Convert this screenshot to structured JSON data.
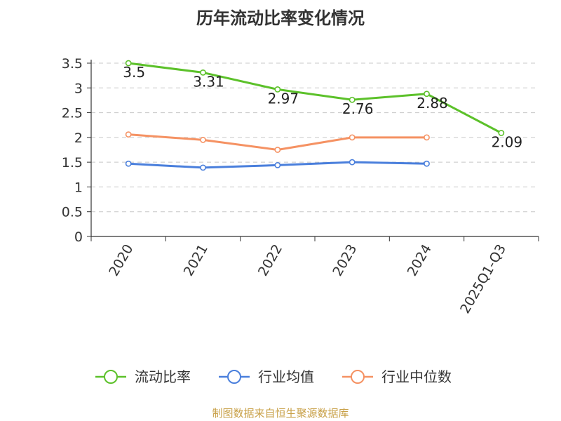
{
  "chart_data": {
    "type": "line",
    "title": "历年流动比率变化情况",
    "categories": [
      "2020",
      "2021",
      "2022",
      "2023",
      "2024",
      "2025Q1-Q3"
    ],
    "ylim": [
      0,
      3.5
    ],
    "yticks": [
      "0",
      "0.5",
      "1",
      "1.5",
      "2",
      "2.5",
      "3",
      "3.5"
    ],
    "grid": true,
    "legend_position": "bottom",
    "series": [
      {
        "name": "流动比率",
        "color": "#5cc12a",
        "values": [
          3.5,
          3.31,
          2.97,
          2.76,
          2.88,
          2.09
        ],
        "labels": [
          "3.5",
          "3.31",
          "2.97",
          "2.76",
          "2.88",
          "2.09"
        ]
      },
      {
        "name": "行业均值",
        "color": "#4a7fdc",
        "values": [
          1.47,
          1.39,
          1.44,
          1.5,
          1.47,
          null
        ]
      },
      {
        "name": "行业中位数",
        "color": "#f59263",
        "values": [
          2.06,
          1.95,
          1.75,
          2.0,
          2.0,
          null
        ]
      }
    ]
  },
  "source": "制图数据来自恒生聚源数据库"
}
